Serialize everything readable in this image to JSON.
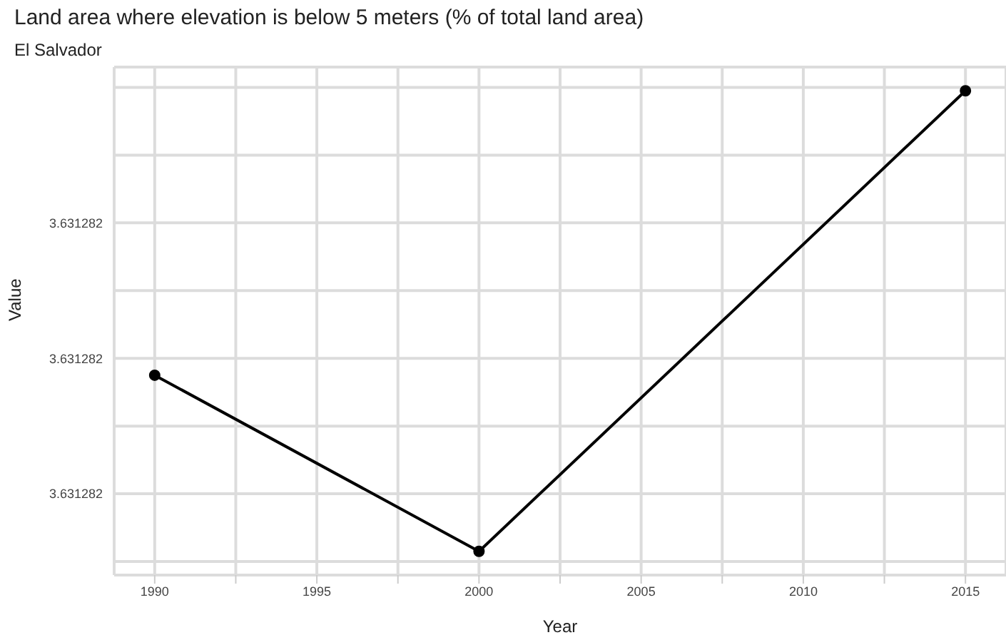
{
  "chart_data": {
    "type": "line",
    "title": "Land area where elevation is below 5 meters (% of total land area)",
    "subtitle": "El Salvador",
    "xlabel": "Year",
    "ylabel": "Value",
    "x": [
      1990,
      2000,
      2015
    ],
    "series": [
      {
        "color": "#000000",
        "values": [
          3.63128195,
          3.63128143,
          3.63128279
        ]
      }
    ],
    "xlim": [
      1988.75,
      2016.25
    ],
    "xticks": [
      1990,
      {
        "value": 1992.5,
        "label": null
      },
      1995,
      {
        "value": 1997.5,
        "label": null
      },
      2000,
      {
        "value": 2002.5,
        "label": null
      },
      2005,
      {
        "value": 2007.5,
        "label": null
      },
      2010,
      {
        "value": 2012.5,
        "label": null
      },
      2015
    ],
    "ylim": [
      3.63128136,
      3.63128286
    ],
    "yticks": [
      {
        "value": 3.6312814,
        "label": null
      },
      {
        "value": 3.6312816,
        "label": "3.631282"
      },
      {
        "value": 3.6312818,
        "label": null
      },
      {
        "value": 3.631282,
        "label": "3.631282"
      },
      {
        "value": 3.6312822,
        "label": null
      },
      {
        "value": 3.6312824,
        "label": "3.631282"
      },
      {
        "value": 3.6312826,
        "label": null
      },
      {
        "value": 3.6312828,
        "label": null
      }
    ],
    "grid": true,
    "marker": "circle",
    "line_style": "solid",
    "legend": false
  }
}
